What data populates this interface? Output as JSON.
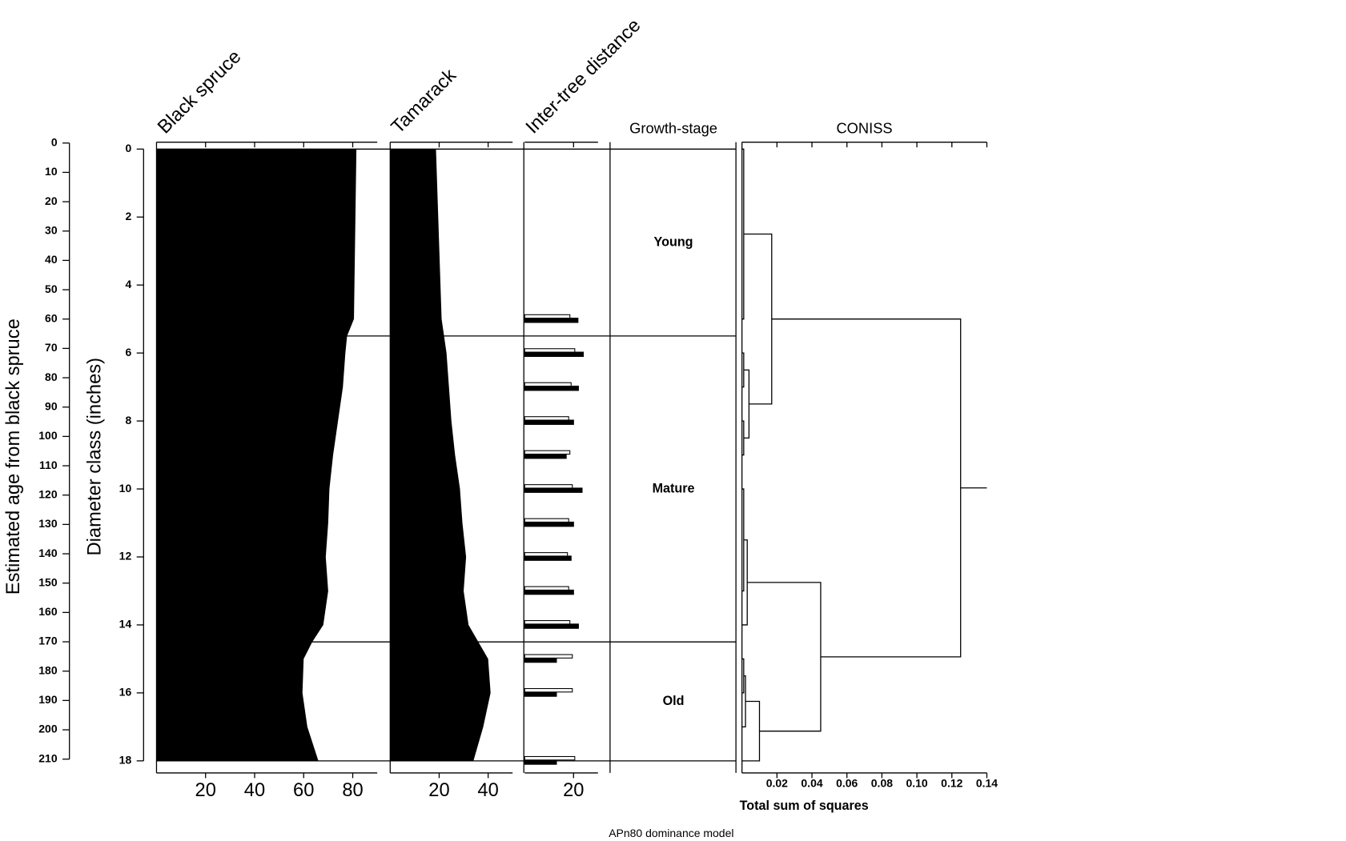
{
  "caption": "APn80 dominance model",
  "age_axis": {
    "label": "Estimated age from black spruce",
    "ylim": [
      0,
      210
    ],
    "yticks": [
      0,
      10,
      20,
      30,
      40,
      50,
      60,
      70,
      80,
      90,
      100,
      110,
      120,
      130,
      140,
      150,
      160,
      170,
      180,
      190,
      200,
      210
    ]
  },
  "depth_axis": {
    "label": "Diameter class (inches)",
    "ylim": [
      0,
      18
    ],
    "yticks": [
      0,
      2,
      4,
      6,
      8,
      10,
      12,
      14,
      16,
      18
    ]
  },
  "chart_data": [
    {
      "type": "area",
      "title": "Black spruce",
      "color": "#000000",
      "xlim": [
        0,
        90
      ],
      "xticks": [
        20,
        40,
        60,
        80
      ],
      "depths": [
        0,
        5,
        5.5,
        6,
        7,
        8,
        9,
        10,
        11,
        12,
        13,
        14,
        14.5,
        15,
        16,
        17,
        18
      ],
      "values": [
        81.5,
        80.5,
        77.7,
        77,
        76,
        74,
        72,
        70.5,
        70,
        69,
        70,
        68,
        63.5,
        60,
        59.5,
        61.5,
        66
      ]
    },
    {
      "type": "area",
      "title": "Tamarack",
      "color": "#000000",
      "xlim": [
        0,
        50
      ],
      "xticks": [
        20,
        40
      ],
      "depths": [
        0,
        5,
        6,
        7,
        8,
        9,
        10,
        11,
        12,
        13,
        14,
        15,
        16,
        17,
        18
      ],
      "values": [
        18.7,
        21,
        23,
        24,
        25,
        26.5,
        28.5,
        29.5,
        31,
        30,
        32,
        40,
        41,
        38,
        34
      ]
    },
    {
      "type": "bar",
      "title": "Inter-tree distance",
      "xlim": [
        0,
        30
      ],
      "xticks": [
        20
      ],
      "depths": [
        5,
        6,
        7,
        8,
        9,
        10,
        11,
        12,
        13,
        14,
        15,
        16,
        18
      ],
      "series": [
        {
          "color": "#000000",
          "values": [
            21.8,
            24,
            22,
            20,
            17,
            23.5,
            20,
            19,
            20,
            22,
            13,
            13,
            13
          ]
        },
        {
          "color": "#ffffff",
          "values": [
            18.5,
            20.5,
            19,
            18,
            18.5,
            19.5,
            18,
            17.5,
            18,
            18.5,
            19.5,
            19.5,
            20.5
          ]
        }
      ]
    },
    {
      "type": "zones",
      "title": "Growth-stage",
      "categories": [
        "Young",
        "Mature",
        "Old"
      ],
      "boundaries": [
        0,
        5.5,
        14.5,
        18
      ]
    },
    {
      "type": "dendrogram",
      "title": "CONISS",
      "x_label": "Total sum of squares",
      "xlim": [
        0,
        0.14
      ],
      "xticks": [
        0.02,
        0.04,
        0.06,
        0.08,
        {
          "value": 0.1,
          "label": "0.10"
        },
        0.12,
        0.14
      ],
      "brackets": [
        {
          "height": 0.001,
          "top": 0,
          "bottom": 5,
          "top_from": 0,
          "bottom_from": 0
        },
        {
          "height": 0.001,
          "top": 6,
          "bottom": 7,
          "top_from": 0,
          "bottom_from": 0
        },
        {
          "height": 0.001,
          "top": 8,
          "bottom": 9,
          "top_from": 0,
          "bottom_from": 0
        },
        {
          "height": 0.004,
          "top": 6.5,
          "bottom": 8.5,
          "top_from": 0.001,
          "bottom_from": 0.001
        },
        {
          "height": 0.017,
          "top": 2.5,
          "bottom": 7.5,
          "top_from": 0.001,
          "bottom_from": 0.004
        },
        {
          "height": 0.001,
          "top": 10,
          "bottom": 13,
          "top_from": 0,
          "bottom_from": 0
        },
        {
          "height": 0.003,
          "top": 11.5,
          "bottom": 14,
          "top_from": 0.001,
          "bottom_from": 0
        },
        {
          "height": 0.001,
          "top": 15,
          "bottom": 16,
          "top_from": 0,
          "bottom_from": 0
        },
        {
          "height": 0.002,
          "top": 15.5,
          "bottom": 17,
          "top_from": 0.001,
          "bottom_from": 0
        },
        {
          "height": 0.01,
          "top": 16.25,
          "bottom": 18,
          "top_from": 0.002,
          "bottom_from": 0
        },
        {
          "height": 0.045,
          "top": 12.75,
          "bottom": 17.125,
          "top_from": 0.003,
          "bottom_from": 0.01
        },
        {
          "height": 0.125,
          "top": 5,
          "bottom": 14.94,
          "top_from": 0.017,
          "bottom_from": 0.045
        }
      ]
    }
  ]
}
